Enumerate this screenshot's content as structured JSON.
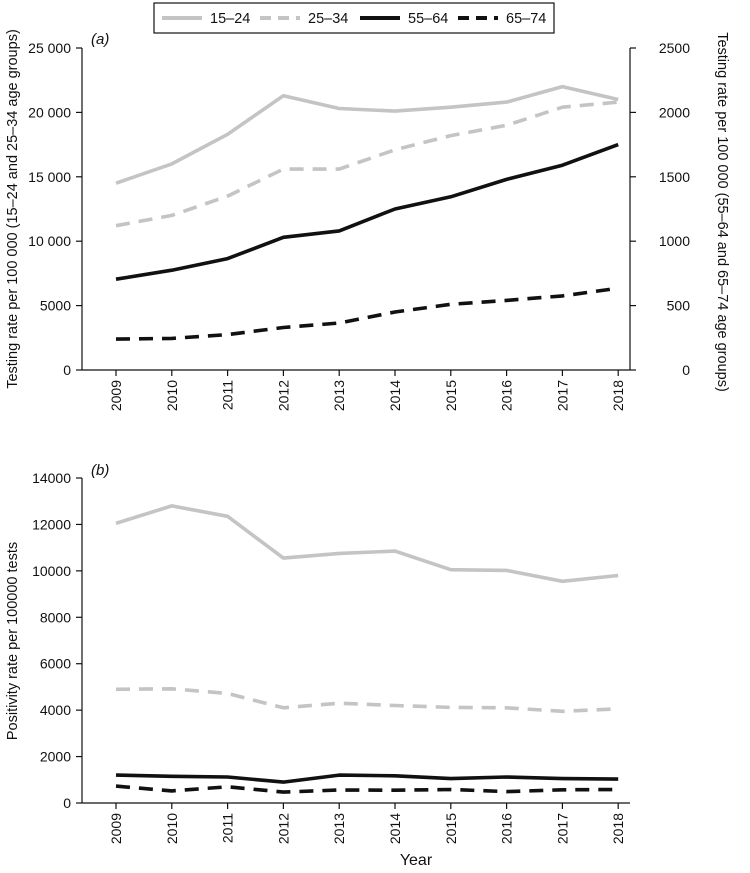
{
  "legend": {
    "items": [
      {
        "label": "15–24",
        "color": "#c4c4c4",
        "dash": "solid"
      },
      {
        "label": "25–34",
        "color": "#c4c4c4",
        "dash": "dashed"
      },
      {
        "label": "55–64",
        "color": "#111111",
        "dash": "solid"
      },
      {
        "label": "65–74",
        "color": "#111111",
        "dash": "dashed"
      }
    ]
  },
  "chart_data": [
    {
      "type": "line",
      "panel_label": "(a)",
      "x": [
        "2009",
        "2010",
        "2011",
        "2012",
        "2013",
        "2014",
        "2015",
        "2016",
        "2017",
        "2018"
      ],
      "xlabel": "",
      "ylabel": "Testing rate per 100 000 (15–24 and 25–34 age groups)",
      "y2label": "Testing rate per 100 000 (55–64 and 65–74 age groups)",
      "ylim": [
        0,
        25000
      ],
      "y_ticks": [
        0,
        5000,
        10000,
        15000,
        20000,
        25000
      ],
      "y_tick_labels": [
        "0",
        "5000",
        "10 000",
        "15 000",
        "20 000",
        "25 000"
      ],
      "y2lim": [
        0,
        2500
      ],
      "y2_ticks": [
        0,
        500,
        1000,
        1500,
        2000,
        2500
      ],
      "y2_tick_labels": [
        "0",
        "500",
        "1000",
        "1500",
        "2000",
        "2500"
      ],
      "grid": false,
      "legend_position": "top-center",
      "series": [
        {
          "name": "15–24",
          "axis": "left",
          "color": "#c4c4c4",
          "dash": "solid",
          "values": [
            14500,
            16000,
            18300,
            21300,
            20300,
            20100,
            20400,
            20800,
            22000,
            21000
          ]
        },
        {
          "name": "25–34",
          "axis": "left",
          "color": "#c4c4c4",
          "dash": "dashed",
          "values": [
            11200,
            12000,
            13500,
            15600,
            15600,
            17100,
            18200,
            19000,
            20400,
            20800
          ]
        },
        {
          "name": "55–64",
          "axis": "right",
          "color": "#111111",
          "dash": "solid",
          "values": [
            705,
            775,
            865,
            1030,
            1080,
            1250,
            1345,
            1480,
            1590,
            1750
          ]
        },
        {
          "name": "65–74",
          "axis": "right",
          "color": "#111111",
          "dash": "dashed",
          "values": [
            240,
            245,
            275,
            330,
            365,
            450,
            510,
            540,
            575,
            635
          ]
        }
      ]
    },
    {
      "type": "line",
      "panel_label": "(b)",
      "x": [
        "2009",
        "2010",
        "2011",
        "2012",
        "2013",
        "2014",
        "2015",
        "2016",
        "2017",
        "2018"
      ],
      "xlabel": "Year",
      "ylabel": "Positivity rate per 100000 tests",
      "ylim": [
        0,
        14000
      ],
      "y_ticks": [
        0,
        2000,
        4000,
        6000,
        8000,
        10000,
        12000,
        14000
      ],
      "y_tick_labels": [
        "0",
        "2000",
        "4000",
        "6000",
        "8000",
        "10000",
        "12000",
        "14000"
      ],
      "grid": false,
      "series": [
        {
          "name": "15–24",
          "color": "#c4c4c4",
          "dash": "solid",
          "values": [
            12050,
            12800,
            12350,
            10550,
            10750,
            10850,
            10050,
            10020,
            9550,
            9800
          ]
        },
        {
          "name": "25–34",
          "color": "#c4c4c4",
          "dash": "dashed",
          "values": [
            4900,
            4920,
            4720,
            4100,
            4300,
            4200,
            4120,
            4100,
            3950,
            4060
          ]
        },
        {
          "name": "55–64",
          "color": "#111111",
          "dash": "solid",
          "values": [
            1200,
            1150,
            1120,
            900,
            1200,
            1170,
            1050,
            1120,
            1050,
            1030
          ]
        },
        {
          "name": "65–74",
          "color": "#111111",
          "dash": "dashed",
          "values": [
            730,
            520,
            700,
            470,
            560,
            550,
            580,
            490,
            570,
            580
          ]
        }
      ]
    }
  ]
}
